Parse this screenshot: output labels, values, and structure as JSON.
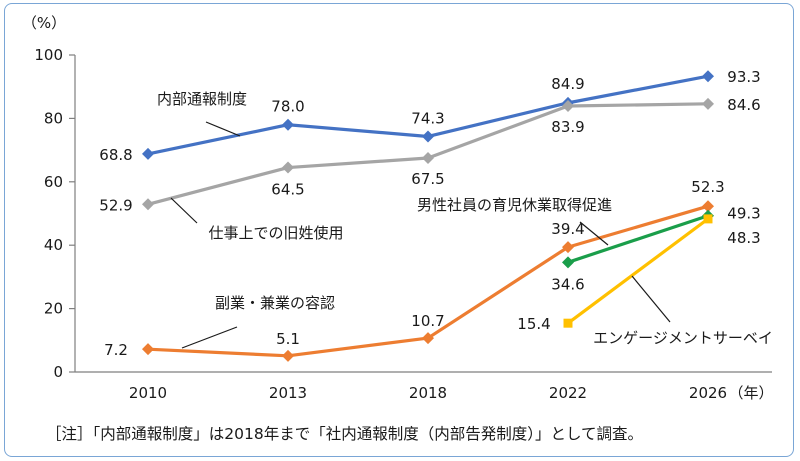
{
  "chart_data": {
    "type": "line",
    "ylabel": "（%）",
    "xunit": "（年）",
    "ylim": [
      0,
      100
    ],
    "yticks": [
      0,
      20,
      40,
      60,
      80,
      100
    ],
    "categories": [
      "2010",
      "2013",
      "2018",
      "2022",
      "2026"
    ],
    "grid": false,
    "series": [
      {
        "name": "内部通報制度",
        "color": "#4472c4",
        "marker": "diamond",
        "values": [
          68.8,
          78.0,
          74.3,
          84.9,
          93.3
        ],
        "labels": [
          "68.8",
          "78.0",
          "74.3",
          "84.9",
          "93.3"
        ]
      },
      {
        "name": "仕事上での旧姓使用",
        "color": "#a5a5a5",
        "marker": "diamond",
        "values": [
          52.9,
          64.5,
          67.5,
          83.9,
          84.6
        ],
        "labels": [
          "52.9",
          "64.5",
          "67.5",
          "83.9",
          "84.6"
        ]
      },
      {
        "name": "副業・兼業の容認",
        "color": "#ed7d31",
        "marker": "diamond",
        "values": [
          7.2,
          5.1,
          10.7,
          39.4,
          52.3
        ],
        "labels": [
          "7.2",
          "5.1",
          "10.7",
          "39.4",
          "52.3"
        ]
      },
      {
        "name": "男性社員の育児休業取得促進",
        "color": "#1a9e4a",
        "marker": "diamond",
        "values": [
          null,
          null,
          null,
          34.6,
          49.3
        ],
        "labels": [
          "",
          "",
          "",
          "34.6",
          "49.3"
        ]
      },
      {
        "name": "エンゲージメントサーベイ",
        "color": "#ffc000",
        "marker": "square",
        "values": [
          null,
          null,
          null,
          15.4,
          48.3
        ],
        "labels": [
          "",
          "",
          "",
          "15.4",
          "48.3"
        ]
      }
    ]
  },
  "note": "［注］「内部通報制度」は2018年まで「社内通報制度（内部告発制度）」として調査。"
}
